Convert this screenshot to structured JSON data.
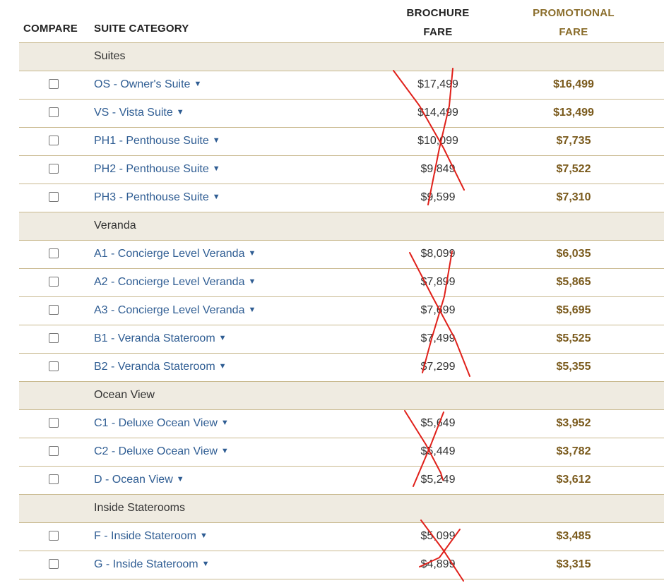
{
  "header": {
    "compare": "COMPARE",
    "suite_category": "SUITE CATEGORY",
    "brochure_fare_line1": "BROCHURE",
    "brochure_fare_line2": "FARE",
    "promotional_fare_line1": "PROMOTIONAL",
    "promotional_fare_line2": "FARE"
  },
  "sections": [
    {
      "label": "Suites",
      "rows": [
        {
          "suite": "OS - Owner's Suite",
          "brochure": "$17,499",
          "promo": "$16,499"
        },
        {
          "suite": "VS - Vista Suite",
          "brochure": "$14,499",
          "promo": "$13,499"
        },
        {
          "suite": "PH1 - Penthouse Suite",
          "brochure": "$10,099",
          "promo": "$7,735"
        },
        {
          "suite": "PH2 - Penthouse Suite",
          "brochure": "$9,849",
          "promo": "$7,522"
        },
        {
          "suite": "PH3 - Penthouse Suite",
          "brochure": "$9,599",
          "promo": "$7,310"
        }
      ]
    },
    {
      "label": "Veranda",
      "rows": [
        {
          "suite": "A1 - Concierge Level Veranda",
          "brochure": "$8,099",
          "promo": "$6,035"
        },
        {
          "suite": "A2 - Concierge Level Veranda",
          "brochure": "$7,899",
          "promo": "$5,865"
        },
        {
          "suite": "A3 - Concierge Level Veranda",
          "brochure": "$7,699",
          "promo": "$5,695"
        },
        {
          "suite": "B1 - Veranda Stateroom",
          "brochure": "$7,499",
          "promo": "$5,525"
        },
        {
          "suite": "B2 - Veranda Stateroom",
          "brochure": "$7,299",
          "promo": "$5,355"
        }
      ]
    },
    {
      "label": "Ocean View",
      "rows": [
        {
          "suite": "C1 - Deluxe Ocean View",
          "brochure": "$5,649",
          "promo": "$3,952"
        },
        {
          "suite": "C2 - Deluxe Ocean View",
          "brochure": "$5,449",
          "promo": "$3,782"
        },
        {
          "suite": "D - Ocean View",
          "brochure": "$5,249",
          "promo": "$3,612"
        }
      ]
    },
    {
      "label": "Inside Staterooms",
      "rows": [
        {
          "suite": "F - Inside Stateroom",
          "brochure": "$5,099",
          "promo": "$3,485"
        },
        {
          "suite": "G - Inside Stateroom",
          "brochure": "$4,899",
          "promo": "$3,315"
        }
      ]
    }
  ],
  "caret_icon": "caret-down-icon",
  "colors": {
    "link": "#2f5d93",
    "promo_header": "#8a6d2b",
    "promo_value": "#7a5a1c",
    "section_bg": "#efebe1",
    "row_border": "#c9b98f",
    "strike_mark": "#e0201a"
  }
}
